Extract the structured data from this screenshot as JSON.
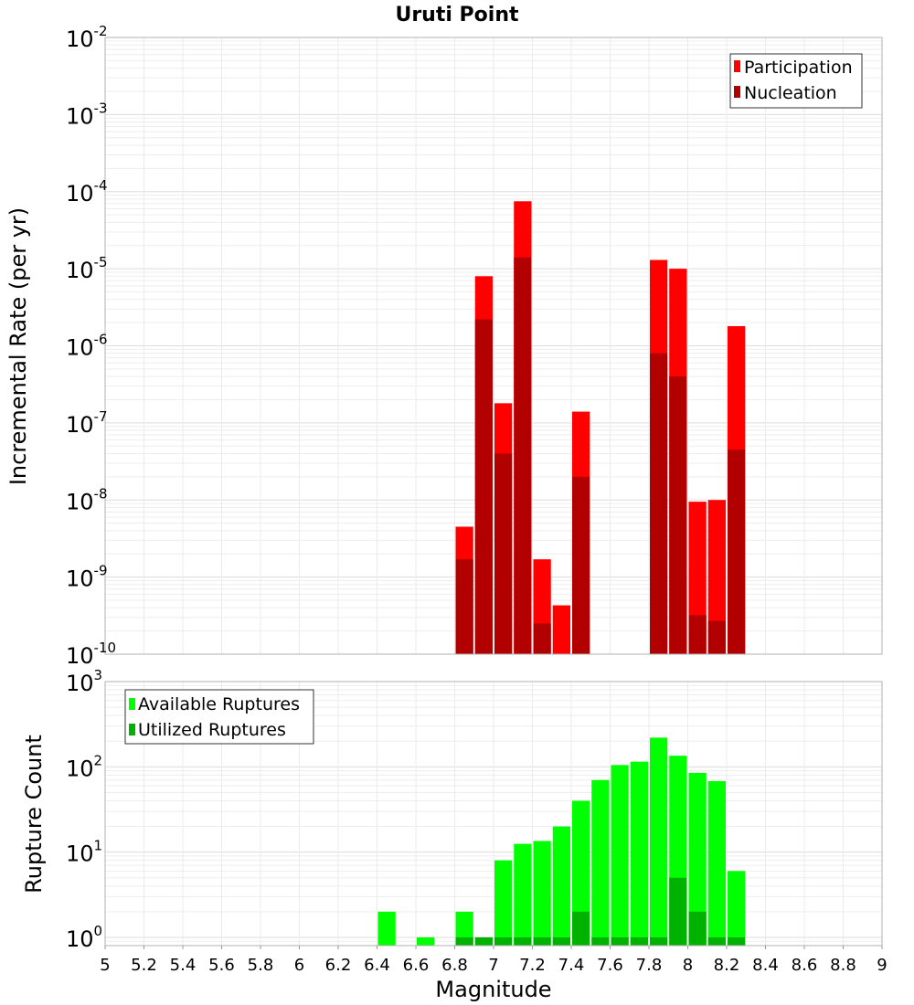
{
  "chart_data": [
    {
      "type": "bar",
      "title": "Uruti Point",
      "ylabel": "Incremental Rate (per yr)",
      "xlabel": "",
      "xlim": [
        5,
        9
      ],
      "ylim": [
        1e-10,
        0.01
      ],
      "yscale": "log",
      "grid": true,
      "legend_position": "top-right",
      "y_tick_exponents": [
        "-2",
        "-3",
        "-4",
        "-5",
        "-6",
        "-7",
        "-8",
        "-9",
        "-10"
      ],
      "y_tick_base": "10",
      "colors": {
        "participation": "#ff0000",
        "nucleation": "#b20000"
      },
      "series": [
        {
          "name": "Participation",
          "x": [
            6.85,
            6.95,
            7.05,
            7.15,
            7.25,
            7.35,
            7.45,
            7.85,
            7.95,
            8.05,
            8.15,
            8.25
          ],
          "values": [
            4.5e-09,
            8e-06,
            1.8e-07,
            7.5e-05,
            1.7e-09,
            4.3e-10,
            1.4e-07,
            1.3e-05,
            1e-05,
            9.5e-09,
            1e-08,
            1.8e-06
          ]
        },
        {
          "name": "Nucleation",
          "x": [
            6.85,
            6.95,
            7.05,
            7.15,
            7.25,
            7.35,
            7.45,
            7.85,
            7.95,
            8.05,
            8.15,
            8.25
          ],
          "values": [
            1.7e-09,
            2.2e-06,
            4e-08,
            1.4e-05,
            2.5e-10,
            null,
            2e-08,
            8e-07,
            4e-07,
            3.2e-10,
            2.7e-10,
            4.5e-08
          ]
        }
      ]
    },
    {
      "type": "bar",
      "title": "",
      "ylabel": "Rupture Count",
      "xlabel": "Magnitude",
      "xlim": [
        5,
        9
      ],
      "ylim": [
        0.8,
        1000
      ],
      "yscale": "log",
      "grid": true,
      "legend_position": "top-left",
      "y_tick_exponents": [
        "3",
        "2",
        "1",
        "0"
      ],
      "y_tick_base": "10",
      "x_ticks": [
        "5",
        "5.2",
        "5.4",
        "5.6",
        "5.8",
        "6",
        "6.2",
        "6.4",
        "6.6",
        "6.8",
        "7",
        "7.2",
        "7.4",
        "7.6",
        "7.8",
        "8",
        "8.2",
        "8.4",
        "8.6",
        "8.8",
        "9"
      ],
      "colors": {
        "available": "#00ff00",
        "utilized": "#00b200"
      },
      "series": [
        {
          "name": "Available Ruptures",
          "x": [
            6.45,
            6.65,
            6.85,
            6.95,
            7.05,
            7.15,
            7.25,
            7.35,
            7.45,
            7.55,
            7.65,
            7.75,
            7.85,
            7.95,
            8.05,
            8.15,
            8.25
          ],
          "values": [
            2,
            1,
            2,
            1,
            8,
            12.5,
            13.5,
            20,
            40,
            70,
            105,
            115,
            220,
            135,
            85,
            68,
            6
          ]
        },
        {
          "name": "Utilized Ruptures",
          "x": [
            6.85,
            6.95,
            7.05,
            7.15,
            7.25,
            7.35,
            7.45,
            7.55,
            7.65,
            7.75,
            7.85,
            7.95,
            8.05,
            8.15,
            8.25
          ],
          "values": [
            1,
            1,
            1,
            1,
            1,
            1,
            2,
            1,
            1,
            1,
            1,
            5,
            2,
            1,
            1
          ]
        }
      ]
    }
  ]
}
